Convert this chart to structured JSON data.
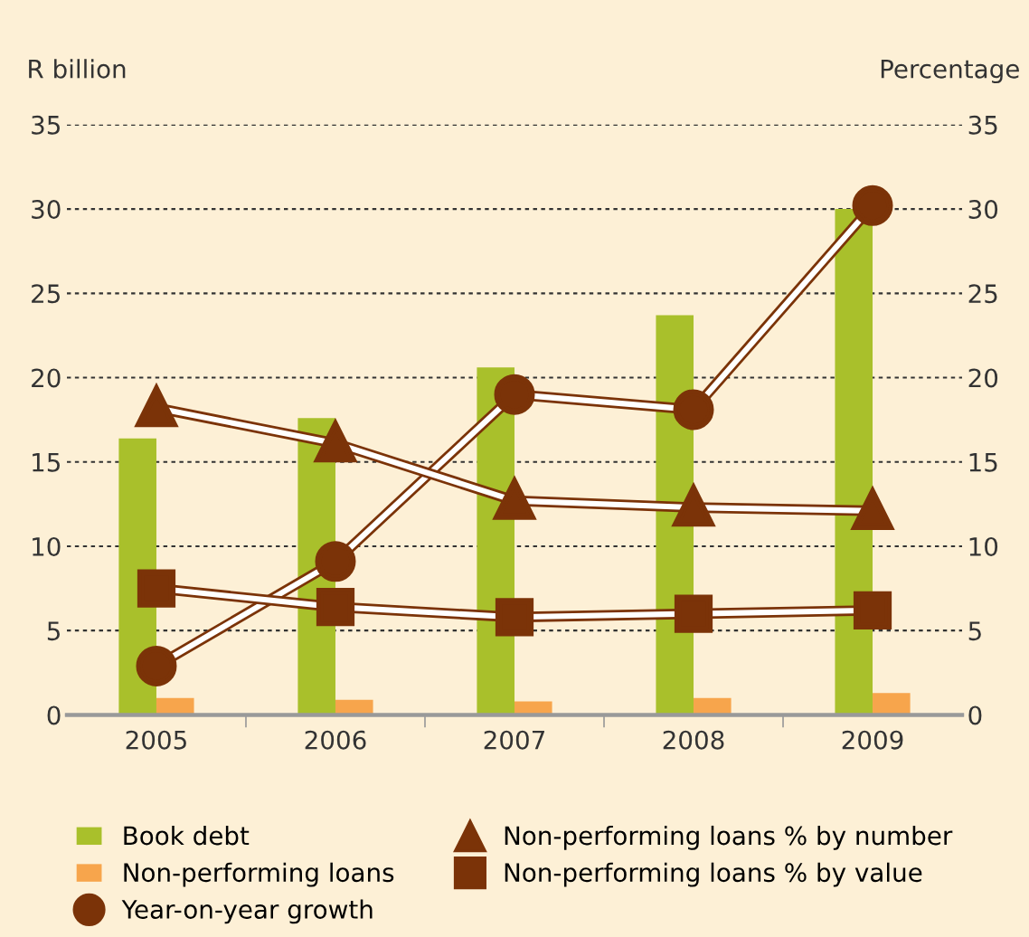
{
  "chart_data": {
    "type": "bar",
    "categories": [
      "2005",
      "2006",
      "2007",
      "2008",
      "2009"
    ],
    "ylabel": "R billion",
    "y2label": "Percentage",
    "ylim": [
      0,
      35
    ],
    "yticks": [
      0,
      5,
      10,
      15,
      20,
      25,
      30,
      35
    ],
    "y2lim": [
      0,
      35
    ],
    "y2ticks": [
      0,
      5,
      10,
      15,
      20,
      25,
      30,
      35
    ],
    "grid": "y",
    "legend": "bottom",
    "series": [
      {
        "name": "Book debt",
        "color": "#a9c02b",
        "values": [
          16.4,
          17.6,
          20.6,
          23.7,
          30.0
        ]
      },
      {
        "name": "Non-performing loans",
        "color": "#f7a54c",
        "values": [
          1.0,
          0.9,
          0.8,
          1.0,
          1.3
        ]
      },
      {
        "name": "Year-on-year growth",
        "type": "line",
        "marker": "circle",
        "color": "#7b3308",
        "values": [
          2.9,
          9.1,
          19.0,
          18.1,
          30.2
        ]
      },
      {
        "name": "Non-performing loans % by number",
        "type": "line",
        "marker": "triangle",
        "color": "#7b3308",
        "values": [
          18.2,
          16.1,
          12.7,
          12.3,
          12.1
        ]
      },
      {
        "name": "Non-performing loans % by value",
        "type": "line",
        "marker": "square",
        "color": "#7b3308",
        "values": [
          7.5,
          6.4,
          5.8,
          6.0,
          6.2
        ]
      }
    ]
  }
}
